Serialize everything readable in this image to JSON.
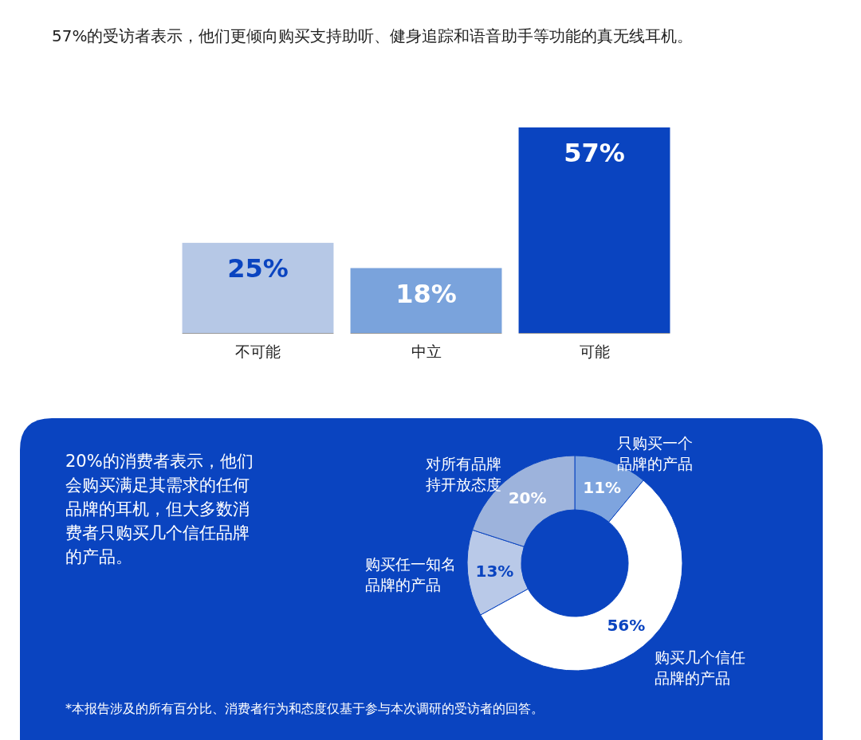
{
  "chart_data": [
    {
      "type": "bar",
      "title": "57%的受访者表示，他们更倾向购买支持助听、健身追踪和语音助手等功能的真无线耳机。",
      "categories": [
        "不可能",
        "中立",
        "可能"
      ],
      "values": [
        25,
        18,
        57
      ],
      "value_labels": [
        "25%",
        "18%",
        "57%"
      ],
      "colors": [
        "#b6c8e6",
        "#7aa3dc",
        "#0a44c0"
      ],
      "ylim": [
        0,
        57
      ]
    },
    {
      "type": "donut",
      "title": "20%的消费者表示，他们会购买满足其需求的任何品牌的耳机，但大多数消费者只购买几个信任品牌的产品。",
      "categories": [
        "只购买一个品牌的产品",
        "购买几个信任品牌的产品",
        "购买任一知名品牌的产品",
        "对所有品牌持开放态度"
      ],
      "values": [
        11,
        56,
        13,
        20
      ],
      "value_labels": [
        "11%",
        "56%",
        "13%",
        "20%"
      ],
      "colors": [
        "#7ea4de",
        "#ffffff",
        "#b9c9e8",
        "#9db3dc"
      ],
      "annotations": [
        "*本报告涉及的所有百分比、消费者行为和态度仅基于参与本次调研的受访者的回答。"
      ]
    }
  ]
}
